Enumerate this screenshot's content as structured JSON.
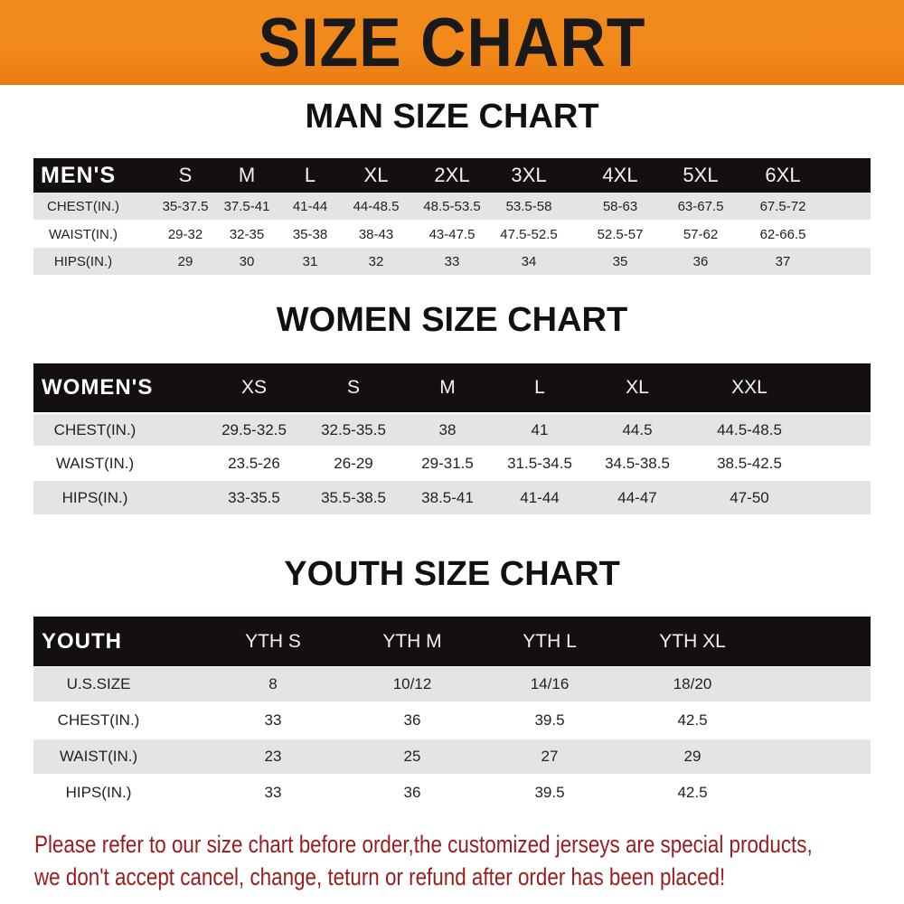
{
  "banner": {
    "title": "SIZE CHART",
    "color": "#f08a1c"
  },
  "men": {
    "title": "MAN SIZE CHART",
    "header": [
      "MEN'S",
      "S",
      "M",
      "L",
      "XL",
      "2XL",
      "3XL",
      "4XL",
      "5XL",
      "6XL"
    ],
    "rows": [
      [
        "CHEST(IN.)",
        "35-37.5",
        "37.5-41",
        "41-44",
        "44-48.5",
        "48.5-53.5",
        "53.5-58",
        "58-63",
        "63-67.5",
        "67.5-72"
      ],
      [
        "WAIST(IN.)",
        "29-32",
        "32-35",
        "35-38",
        "38-43",
        "43-47.5",
        "47.5-52.5",
        "52.5-57",
        "57-62",
        "62-66.5"
      ],
      [
        "HIPS(IN.)",
        "29",
        "30",
        "31",
        "32",
        "33",
        "34",
        "35",
        "36",
        "37"
      ]
    ]
  },
  "women": {
    "title": "WOMEN SIZE CHART",
    "header": [
      "WOMEN'S",
      "XS",
      "S",
      "M",
      "L",
      "XL",
      "XXL"
    ],
    "rows": [
      [
        "CHEST(IN.)",
        "29.5-32.5",
        "32.5-35.5",
        "38",
        "41",
        "44.5",
        "44.5-48.5"
      ],
      [
        "WAIST(IN.)",
        "23.5-26",
        "26-29",
        "29-31.5",
        "31.5-34.5",
        "34.5-38.5",
        "38.5-42.5"
      ],
      [
        "HIPS(IN.)",
        "33-35.5",
        "35.5-38.5",
        "38.5-41",
        "41-44",
        "44-47",
        "47-50"
      ]
    ]
  },
  "youth": {
    "title": "YOUTH SIZE CHART",
    "header": [
      "YOUTH",
      "YTH S",
      "YTH M",
      "YTH L",
      "YTH XL"
    ],
    "rows": [
      [
        "U.S.SIZE",
        "8",
        "10/12",
        "14/16",
        "18/20"
      ],
      [
        "CHEST(IN.)",
        "33",
        "36",
        "39.5",
        "42.5"
      ],
      [
        "WAIST(IN.)",
        "23",
        "25",
        "27",
        "29"
      ],
      [
        "HIPS(IN.)",
        "33",
        "36",
        "39.5",
        "42.5"
      ]
    ]
  },
  "notice": {
    "line1": "Please refer to our size chart before order,the customized jerseys are special products,",
    "line2": "we don't accept cancel, change, teturn or refund after order has been placed!",
    "color": "#9b1c1c"
  }
}
